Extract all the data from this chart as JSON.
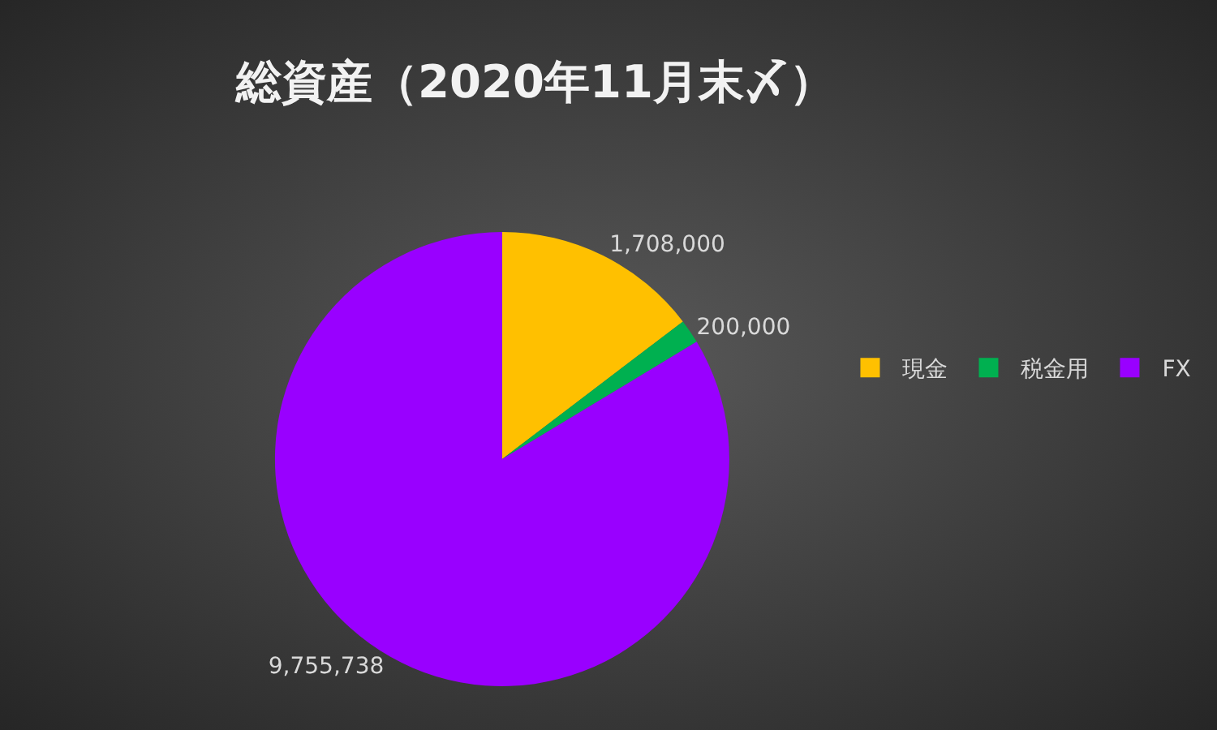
{
  "chart_data": {
    "type": "pie",
    "title": "総資産（2020年11月末〆）",
    "categories": [
      "現金",
      "税金用",
      "FX"
    ],
    "values": [
      1708000,
      200000,
      9755738
    ],
    "value_labels": [
      "1,708,000",
      "200,000",
      "9,755,738"
    ],
    "colors": [
      "#ffc000",
      "#00b050",
      "#9900ff"
    ],
    "legend": "right"
  }
}
